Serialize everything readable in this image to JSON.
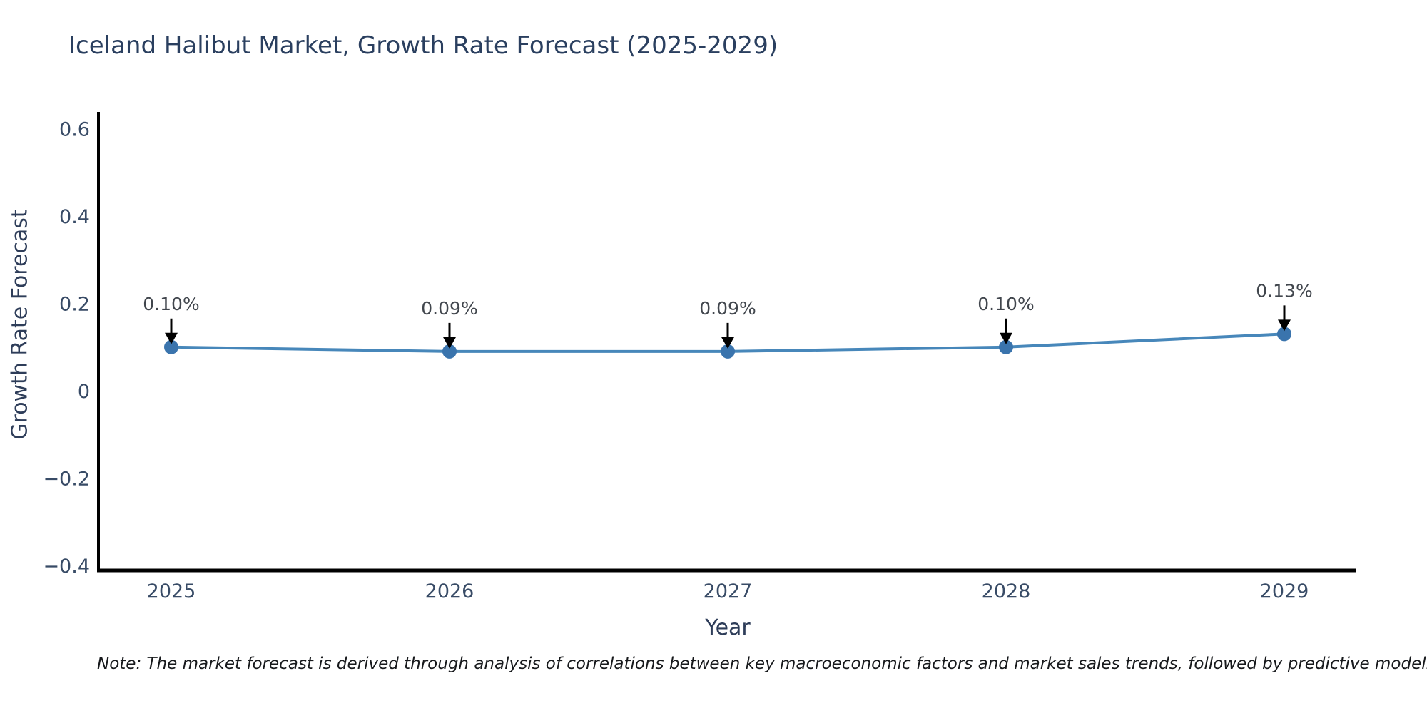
{
  "chart_data": {
    "type": "line",
    "title": "Iceland Halibut Market, Growth Rate Forecast (2025-2029)",
    "xlabel": "Year",
    "ylabel": "Growth Rate Forecast",
    "x": [
      2025,
      2026,
      2027,
      2028,
      2029
    ],
    "series": [
      {
        "name": "Growth Rate Forecast",
        "values": [
          0.1,
          0.09,
          0.09,
          0.1,
          0.13
        ]
      }
    ],
    "point_labels": [
      "0.10%",
      "0.09%",
      "0.09%",
      "0.10%",
      "0.13%"
    ],
    "xtick_labels": [
      "2025",
      "2026",
      "2027",
      "2028",
      "2029"
    ],
    "ytick_values": [
      0.6,
      0.4,
      0.2,
      0,
      -0.2,
      -0.4
    ],
    "ytick_labels": [
      "0.6",
      "0.4",
      "0.2",
      "0",
      "−0.2",
      "−0.4"
    ],
    "ylim": [
      -0.411,
      0.638
    ],
    "grid": false,
    "legend": "none",
    "colors": {
      "line": "#4787ba",
      "marker": "#3a74ad",
      "axis": "#000000",
      "annotation_arrow": "#000000",
      "title_text": "#2a3f5f",
      "background": "#ffffff"
    }
  },
  "note": {
    "text": "Note: The market forecast is derived through analysis of correlations between key macroeconomic factors and market sales trends, followed by predictive modeling to project future sal"
  }
}
